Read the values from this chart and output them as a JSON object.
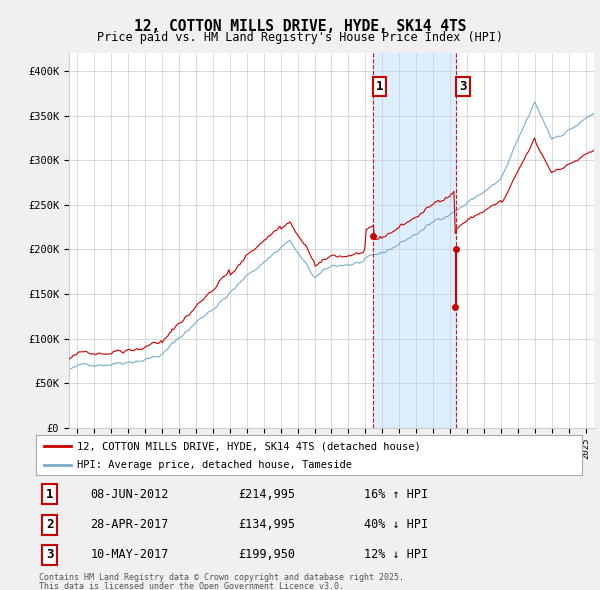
{
  "title": "12, COTTON MILLS DRIVE, HYDE, SK14 4TS",
  "subtitle": "Price paid vs. HM Land Registry's House Price Index (HPI)",
  "legend_line1": "12, COTTON MILLS DRIVE, HYDE, SK14 4TS (detached house)",
  "legend_line2": "HPI: Average price, detached house, Tameside",
  "transaction1_label": "1",
  "transaction1_date": "08-JUN-2012",
  "transaction1_price": "£214,995",
  "transaction1_hpi": "16% ↑ HPI",
  "transaction1_year": 2012.44,
  "transaction1_value": 214995,
  "transaction2_label": "2",
  "transaction2_date": "28-APR-2017",
  "transaction2_price": "£134,995",
  "transaction2_hpi": "40% ↓ HPI",
  "transaction2_year": 2017.32,
  "transaction2_value": 134995,
  "transaction3_label": "3",
  "transaction3_date": "10-MAY-2017",
  "transaction3_price": "£199,950",
  "transaction3_hpi": "12% ↓ HPI",
  "transaction3_year": 2017.36,
  "transaction3_value": 199950,
  "footer_line1": "Contains HM Land Registry data © Crown copyright and database right 2025.",
  "footer_line2": "This data is licensed under the Open Government Licence v3.0.",
  "red_color": "#cc0000",
  "blue_color": "#7aadcc",
  "shade_color": "#ddeeff",
  "dashed_color": "#cc0000",
  "background_color": "#f0f0f0",
  "plot_bg_color": "#ffffff",
  "ylim_min": 0,
  "ylim_max": 420000,
  "xmin": 1994.5,
  "xmax": 2025.5
}
